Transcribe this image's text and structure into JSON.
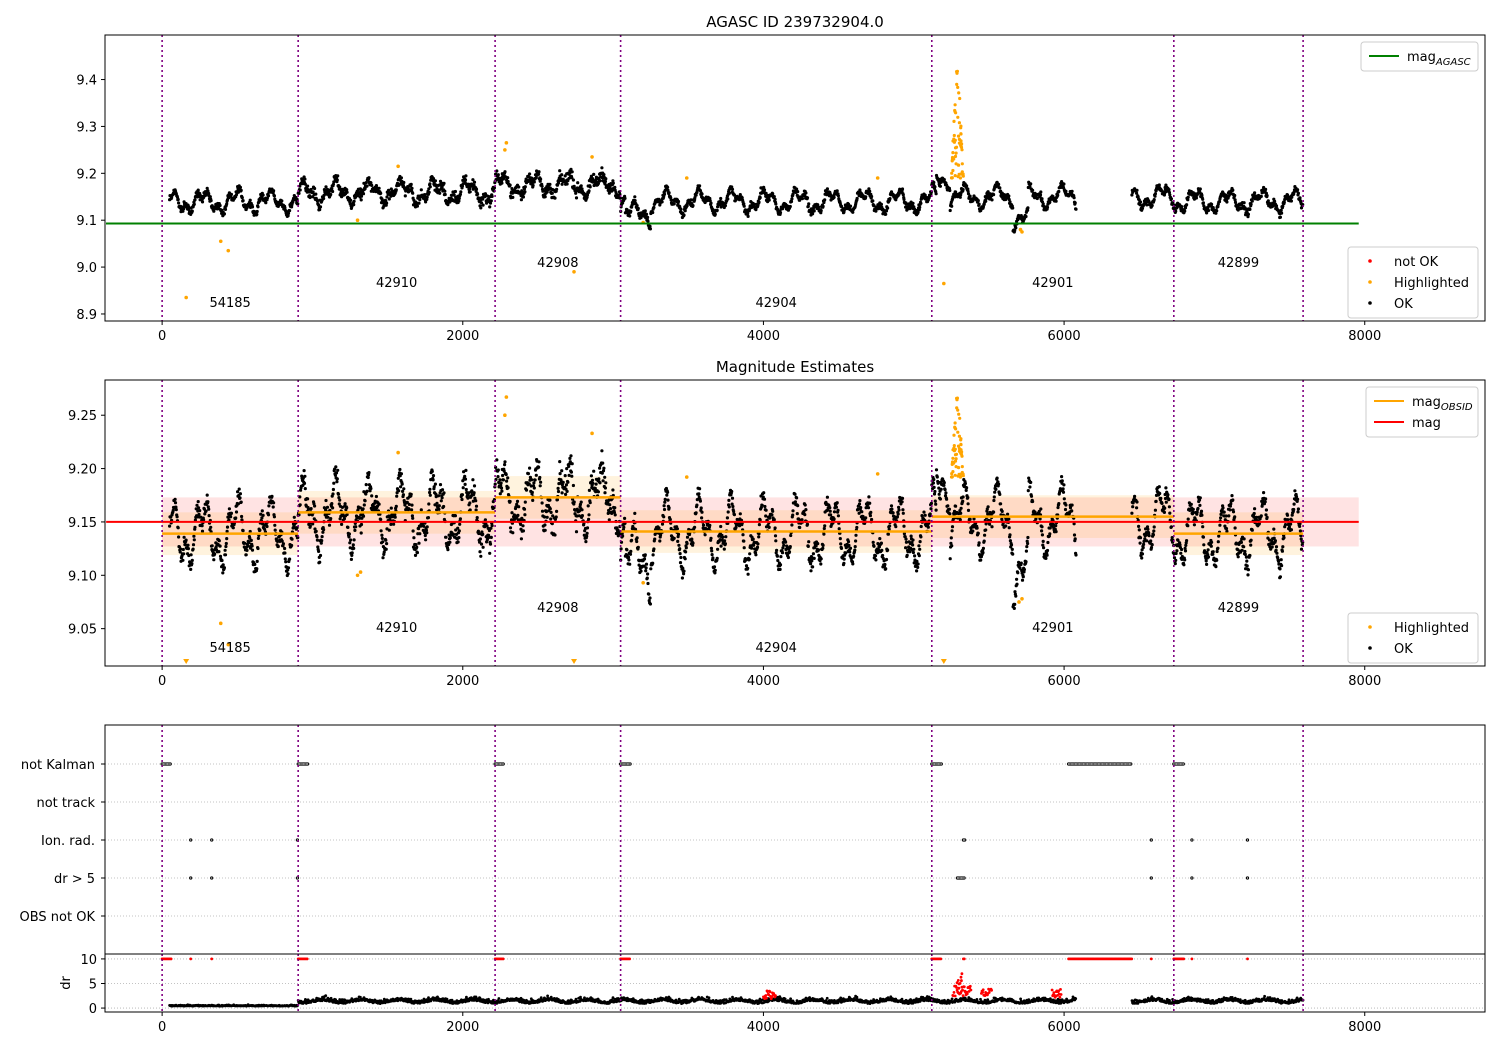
{
  "figure": {
    "obsids": [
      {
        "id": "54185",
        "start": 0,
        "end": 905
      },
      {
        "id": "42910",
        "start": 905,
        "end": 2215
      },
      {
        "id": "42908",
        "start": 2215,
        "end": 3050
      },
      {
        "id": "42904",
        "start": 3050,
        "end": 5120
      },
      {
        "id": "42901",
        "start": 5120,
        "end": 6730
      },
      {
        "id": "42899",
        "start": 6730,
        "end": 7590
      }
    ],
    "boundary_color": "#800080",
    "ok_color": "#000000",
    "highlight_color": "#ffa500",
    "not_ok_color": "#ff0000"
  },
  "chart_data": [
    {
      "type": "scatter",
      "title": "AGASC ID 239732904.0",
      "xlim": [
        -380,
        8800
      ],
      "ylim": [
        8.885,
        9.495
      ],
      "xticks": [
        0,
        2000,
        4000,
        6000,
        8000
      ],
      "yticks": [
        8.9,
        9.0,
        9.1,
        9.2,
        9.3,
        9.4
      ],
      "mag_agasc": 9.093,
      "mag_agasc_x": [
        -380,
        7960
      ],
      "segment_levels": [
        9.14,
        9.16,
        9.175,
        9.14,
        9.15,
        9.14
      ],
      "legend_top": {
        "entries": [
          {
            "name": "mag",
            "sub": "AGASC",
            "color": "#008000"
          }
        ],
        "position": "top-right"
      },
      "legend_bottom": {
        "entries": [
          {
            "name": "not OK",
            "color": "#ff0000"
          },
          {
            "name": "Highlighted",
            "color": "#ffa500"
          },
          {
            "name": "OK",
            "color": "#000000"
          }
        ],
        "position": "bottom-right"
      },
      "highlighted_points": [
        [
          160,
          8.935
        ],
        [
          390,
          9.055
        ],
        [
          440,
          9.035
        ],
        [
          1300,
          9.1
        ],
        [
          1570,
          9.215
        ],
        [
          2280,
          9.25
        ],
        [
          2290,
          9.265
        ],
        [
          2740,
          8.99
        ],
        [
          2860,
          9.235
        ],
        [
          3200,
          9.095
        ],
        [
          3490,
          9.19
        ],
        [
          4760,
          9.19
        ],
        [
          5200,
          8.965
        ],
        [
          5710,
          9.08
        ],
        [
          5720,
          9.075
        ]
      ],
      "spike": {
        "x": [
          5250,
          5330
        ],
        "y_max": 9.47
      }
    },
    {
      "type": "scatter",
      "title": "Magnitude Estimates",
      "xlim": [
        -380,
        8800
      ],
      "ylim": [
        9.015,
        9.283
      ],
      "xticks": [
        0,
        2000,
        4000,
        6000,
        8000
      ],
      "yticks": [
        9.05,
        9.1,
        9.15,
        9.2,
        9.25
      ],
      "mag": 9.15,
      "mag_band": [
        9.127,
        9.173
      ],
      "mag_x": [
        0,
        7960
      ],
      "mag_obsid": [
        9.139,
        9.159,
        9.173,
        9.141,
        9.155,
        9.139
      ],
      "mag_obsid_band": 0.02,
      "legend_top": {
        "entries": [
          {
            "name": "mag",
            "sub": "OBSID",
            "color": "#ffa500"
          },
          {
            "name": "mag",
            "sub": "",
            "color": "#ff0000"
          }
        ],
        "position": "top-right"
      },
      "legend_bottom": {
        "entries": [
          {
            "name": "Highlighted",
            "color": "#ffa500"
          },
          {
            "name": "OK",
            "color": "#000000"
          }
        ],
        "position": "bottom-right"
      },
      "segment_levels": [
        9.14,
        9.158,
        9.172,
        9.14,
        9.152,
        9.14
      ],
      "clipped_markers": [
        160,
        2740,
        5200
      ],
      "highlighted_points": [
        [
          390,
          9.055
        ],
        [
          440,
          9.035
        ],
        [
          1300,
          9.1
        ],
        [
          1320,
          9.103
        ],
        [
          1570,
          9.215
        ],
        [
          2280,
          9.25
        ],
        [
          2290,
          9.267
        ],
        [
          2860,
          9.233
        ],
        [
          3200,
          9.093
        ],
        [
          3490,
          9.192
        ],
        [
          4760,
          9.195
        ],
        [
          5700,
          9.075
        ],
        [
          5720,
          9.078
        ]
      ],
      "spike": {
        "x": [
          5250,
          5330
        ],
        "y_max": 9.283
      }
    },
    {
      "type": "scatter",
      "title": "",
      "xlim": [
        -380,
        8800
      ],
      "xticks": [
        0,
        2000,
        4000,
        6000,
        8000
      ],
      "categories": [
        "not Kalman",
        "not track",
        "Ion. rad.",
        "dr > 5",
        "OBS not OK"
      ],
      "flags": {
        "not Kalman": [
          [
            0,
            60
          ],
          [
            905,
            970
          ],
          [
            2215,
            2270
          ],
          [
            3050,
            3115
          ],
          [
            5120,
            5185
          ],
          [
            6030,
            6450
          ],
          [
            6730,
            6800
          ]
        ],
        "not track": [],
        "Ion. rad.": [
          [
            190,
            190
          ],
          [
            330,
            330
          ],
          [
            900,
            900
          ],
          [
            5330,
            5340
          ],
          [
            6580,
            6580
          ],
          [
            6850,
            6850
          ],
          [
            7220,
            7220
          ]
        ],
        "dr > 5": [
          [
            190,
            190
          ],
          [
            330,
            330
          ],
          [
            900,
            900
          ],
          [
            5290,
            5340
          ],
          [
            6580,
            6580
          ],
          [
            6850,
            6850
          ],
          [
            7220,
            7220
          ]
        ],
        "OBS not OK": []
      }
    },
    {
      "type": "scatter",
      "title": "",
      "xlim": [
        -380,
        8800
      ],
      "ylim": [
        -0.8,
        11
      ],
      "xticks": [
        0,
        2000,
        4000,
        6000,
        8000
      ],
      "yticks": [
        0,
        5,
        10
      ],
      "ylabel": "dr",
      "xtick_labels": [
        "0",
        "2000",
        "4000",
        "6000",
        "8000"
      ],
      "clipped_value": 10,
      "red_clipped_ranges": [
        [
          0,
          60
        ],
        [
          190,
          190
        ],
        [
          330,
          330
        ],
        [
          905,
          970
        ],
        [
          2215,
          2270
        ],
        [
          3050,
          3115
        ],
        [
          5120,
          5185
        ],
        [
          5330,
          5340
        ],
        [
          6030,
          6450
        ],
        [
          6580,
          6580
        ],
        [
          6730,
          6800
        ],
        [
          6850,
          6850
        ],
        [
          7220,
          7220
        ]
      ],
      "red_extra": [
        [
          4000,
          4080,
          2.7
        ],
        [
          5260,
          5380,
          3.5
        ],
        [
          5450,
          5520,
          3.0
        ],
        [
          5920,
          5980,
          3.0
        ]
      ]
    }
  ]
}
